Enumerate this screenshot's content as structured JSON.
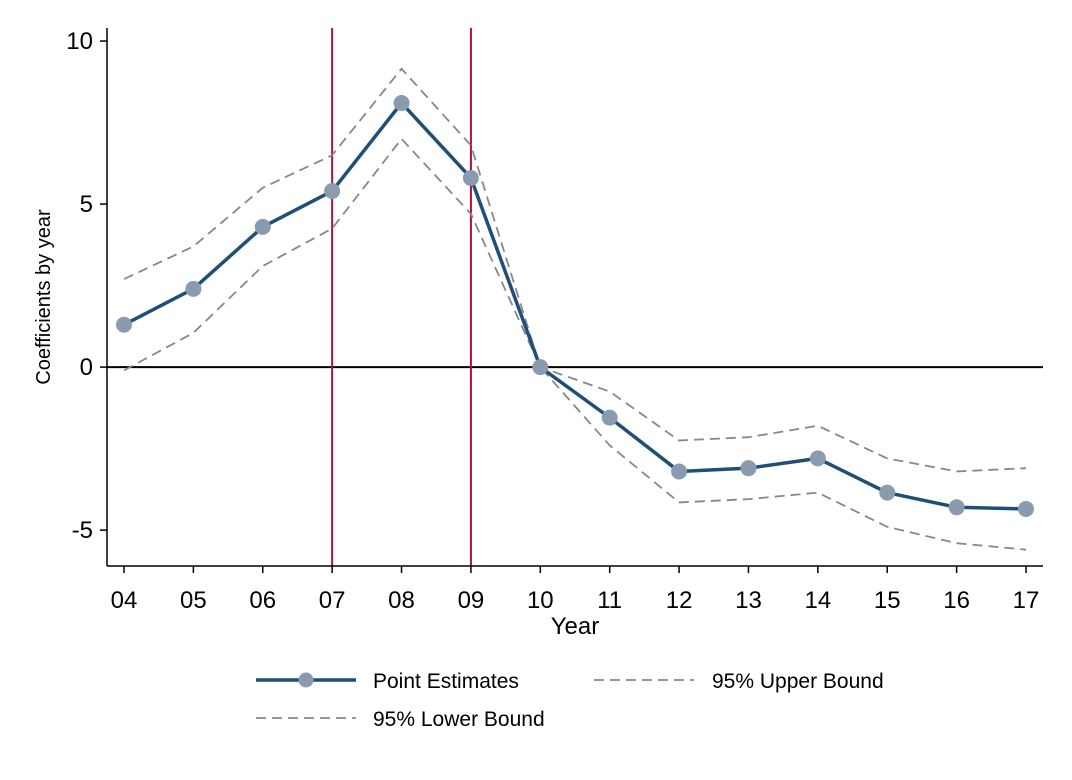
{
  "chart_data": {
    "type": "line",
    "title": "",
    "xlabel": "Year",
    "ylabel": "Coefficients by year",
    "categories": [
      "04",
      "05",
      "06",
      "07",
      "08",
      "09",
      "10",
      "11",
      "12",
      "13",
      "14",
      "15",
      "16",
      "17"
    ],
    "ylim": [
      -6.1,
      10.4
    ],
    "yticks": [
      -5,
      0,
      5,
      10
    ],
    "yticklabels": [
      "-5",
      "0",
      "5",
      "10"
    ],
    "grid": false,
    "zero_line": 0,
    "vertical_lines": [
      "07",
      "09"
    ],
    "series": [
      {
        "name": "Point Estimates",
        "style": "line-markers",
        "color": "#1f4e79",
        "values": [
          1.3,
          2.4,
          4.3,
          5.4,
          8.1,
          5.8,
          0.0,
          -1.55,
          -3.2,
          -3.1,
          -2.8,
          -3.85,
          -4.3,
          -4.35
        ]
      },
      {
        "name": "95% Upper Bound",
        "style": "dashed",
        "color": "#888888",
        "values": [
          2.7,
          3.7,
          5.5,
          6.5,
          9.15,
          6.8,
          0.0,
          -0.75,
          -2.25,
          -2.15,
          -1.8,
          -2.8,
          -3.2,
          -3.1
        ]
      },
      {
        "name": "95% Lower Bound",
        "style": "dashed",
        "color": "#888888",
        "values": [
          -0.1,
          1.05,
          3.1,
          4.25,
          7.0,
          4.7,
          0.0,
          -2.4,
          -4.15,
          -4.05,
          -3.85,
          -4.9,
          -5.4,
          -5.6
        ]
      }
    ],
    "legend": {
      "placement": "bottom",
      "entries": [
        "Point Estimates",
        "95% Upper Bound",
        "95% Lower Bound"
      ]
    }
  }
}
